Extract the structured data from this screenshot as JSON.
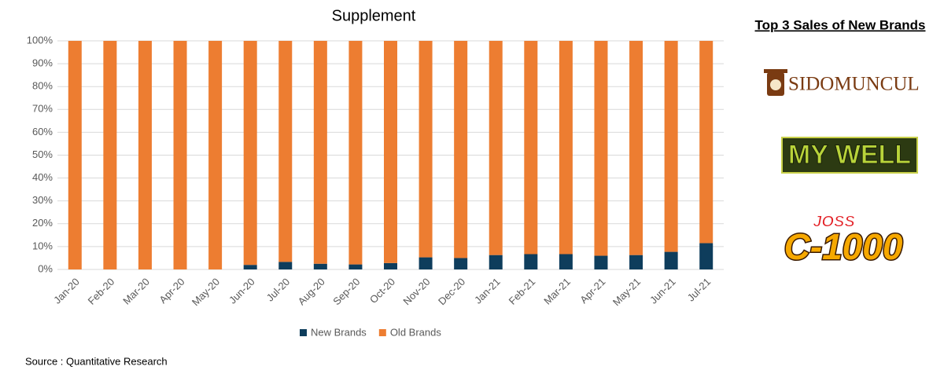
{
  "chart_data": {
    "type": "stacked_bar",
    "title": "Supplement",
    "categories": [
      "Jan-20",
      "Feb-20",
      "Mar-20",
      "Apr-20",
      "May-20",
      "Jun-20",
      "Jul-20",
      "Aug-20",
      "Sep-20",
      "Oct-20",
      "Nov-20",
      "Dec-20",
      "Jan-21",
      "Feb-21",
      "Mar-21",
      "Apr-21",
      "May-21",
      "Jun-21",
      "Jul-21"
    ],
    "series": [
      {
        "name": "New Brands",
        "color": "#0e3d5c",
        "values": [
          0,
          0,
          0,
          0,
          0,
          2,
          3.3,
          2.5,
          2.2,
          2.8,
          5.3,
          5,
          6.3,
          6.7,
          6.7,
          6,
          6.3,
          7.7,
          11.5
        ]
      },
      {
        "name": "Old Brands",
        "color": "#ed7d31",
        "values": [
          100,
          100,
          100,
          100,
          100,
          98,
          96.7,
          97.5,
          97.8,
          97.2,
          94.7,
          95,
          93.7,
          93.3,
          93.3,
          94,
          93.7,
          92.3,
          88.5
        ]
      }
    ],
    "ylim": [
      0,
      100
    ],
    "yticks": [
      {
        "value": 0,
        "label": "0%"
      },
      {
        "value": 10,
        "label": "10%"
      },
      {
        "value": 20,
        "label": "20%"
      },
      {
        "value": 30,
        "label": "30%"
      },
      {
        "value": 40,
        "label": "40%"
      },
      {
        "value": 50,
        "label": "50%"
      },
      {
        "value": 60,
        "label": "60%"
      },
      {
        "value": 70,
        "label": "70%"
      },
      {
        "value": 80,
        "label": "80%"
      },
      {
        "value": 90,
        "label": "90%"
      },
      {
        "value": 100,
        "label": "100%"
      }
    ],
    "grid": true,
    "legend": "bottom",
    "source": "Source : Quantitative Research"
  },
  "sidebar": {
    "title": "Top 3 Sales of New Brands",
    "logos": [
      "SIDOMUNCUL",
      "MY WELL",
      "JOSS",
      "C-1000"
    ]
  }
}
